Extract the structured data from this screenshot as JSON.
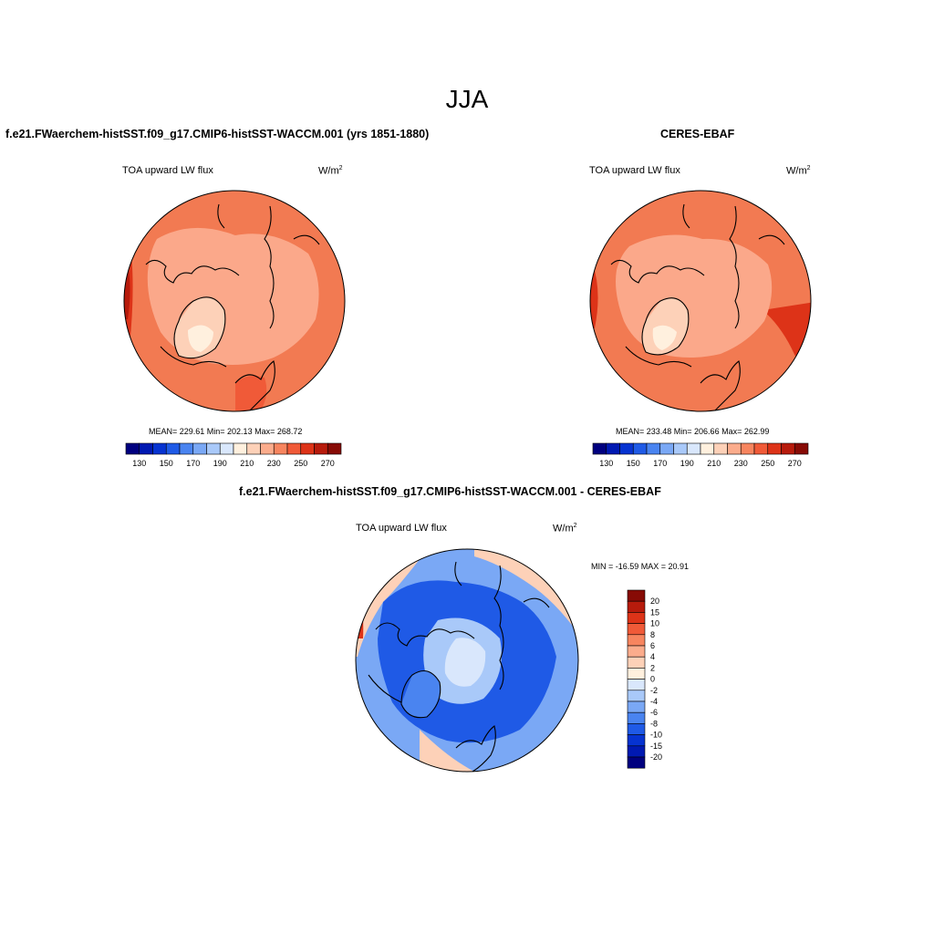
{
  "title": "JJA",
  "panels": [
    {
      "heading": "f.e21.FWaerchem-histSST.f09_g17.CMIP6-histSST-WACCM.001 (yrs 1851-1880)",
      "variable": "TOA upward LW flux",
      "units": "W/m",
      "units_sup": "2",
      "stats": "MEAN= 229.61  Min= 202.13  Max= 268.72",
      "mean": 229.61,
      "min": 202.13,
      "max": 268.72
    },
    {
      "heading": "CERES-EBAF",
      "variable": "TOA upward LW flux",
      "units": "W/m",
      "units_sup": "2",
      "stats": "MEAN= 233.48  Min= 206.66  Max= 262.99",
      "mean": 233.48,
      "min": 206.66,
      "max": 262.99
    },
    {
      "heading": "f.e21.FWaerchem-histSST.f09_g17.CMIP6-histSST-WACCM.001 - CERES-EBAF",
      "variable": "TOA upward LW flux",
      "units": "W/m",
      "units_sup": "2",
      "stats": "MIN = -16.59 MAX =  20.91",
      "min": -16.59,
      "max": 20.91
    }
  ],
  "abs_colorbar": {
    "colors": [
      "#00007f",
      "#0019b2",
      "#0633d1",
      "#1f5ae6",
      "#4a84f0",
      "#7aa8f5",
      "#a9c9f9",
      "#d9e7fc",
      "#fff0de",
      "#fdd1b8",
      "#fbac8c",
      "#f7855f",
      "#f05a38",
      "#dd3318",
      "#b71b0c",
      "#870b05"
    ],
    "labels": [
      "130",
      "150",
      "170",
      "190",
      "210",
      "230",
      "250",
      "270"
    ]
  },
  "diff_colorbar": {
    "colors": [
      "#00007f",
      "#0019b2",
      "#0633d1",
      "#1f5ae6",
      "#4a84f0",
      "#7aa8f5",
      "#a9c9f9",
      "#d9e7fc",
      "#fff0de",
      "#fdd1b8",
      "#fbac8c",
      "#f7855f",
      "#f05a38",
      "#dd3318",
      "#b71b0c",
      "#870b05"
    ],
    "labels": [
      "20",
      "15",
      "10",
      "8",
      "6",
      "4",
      "2",
      "0",
      "-2",
      "-4",
      "-6",
      "-8",
      "-10",
      "-15",
      "-20"
    ]
  }
}
